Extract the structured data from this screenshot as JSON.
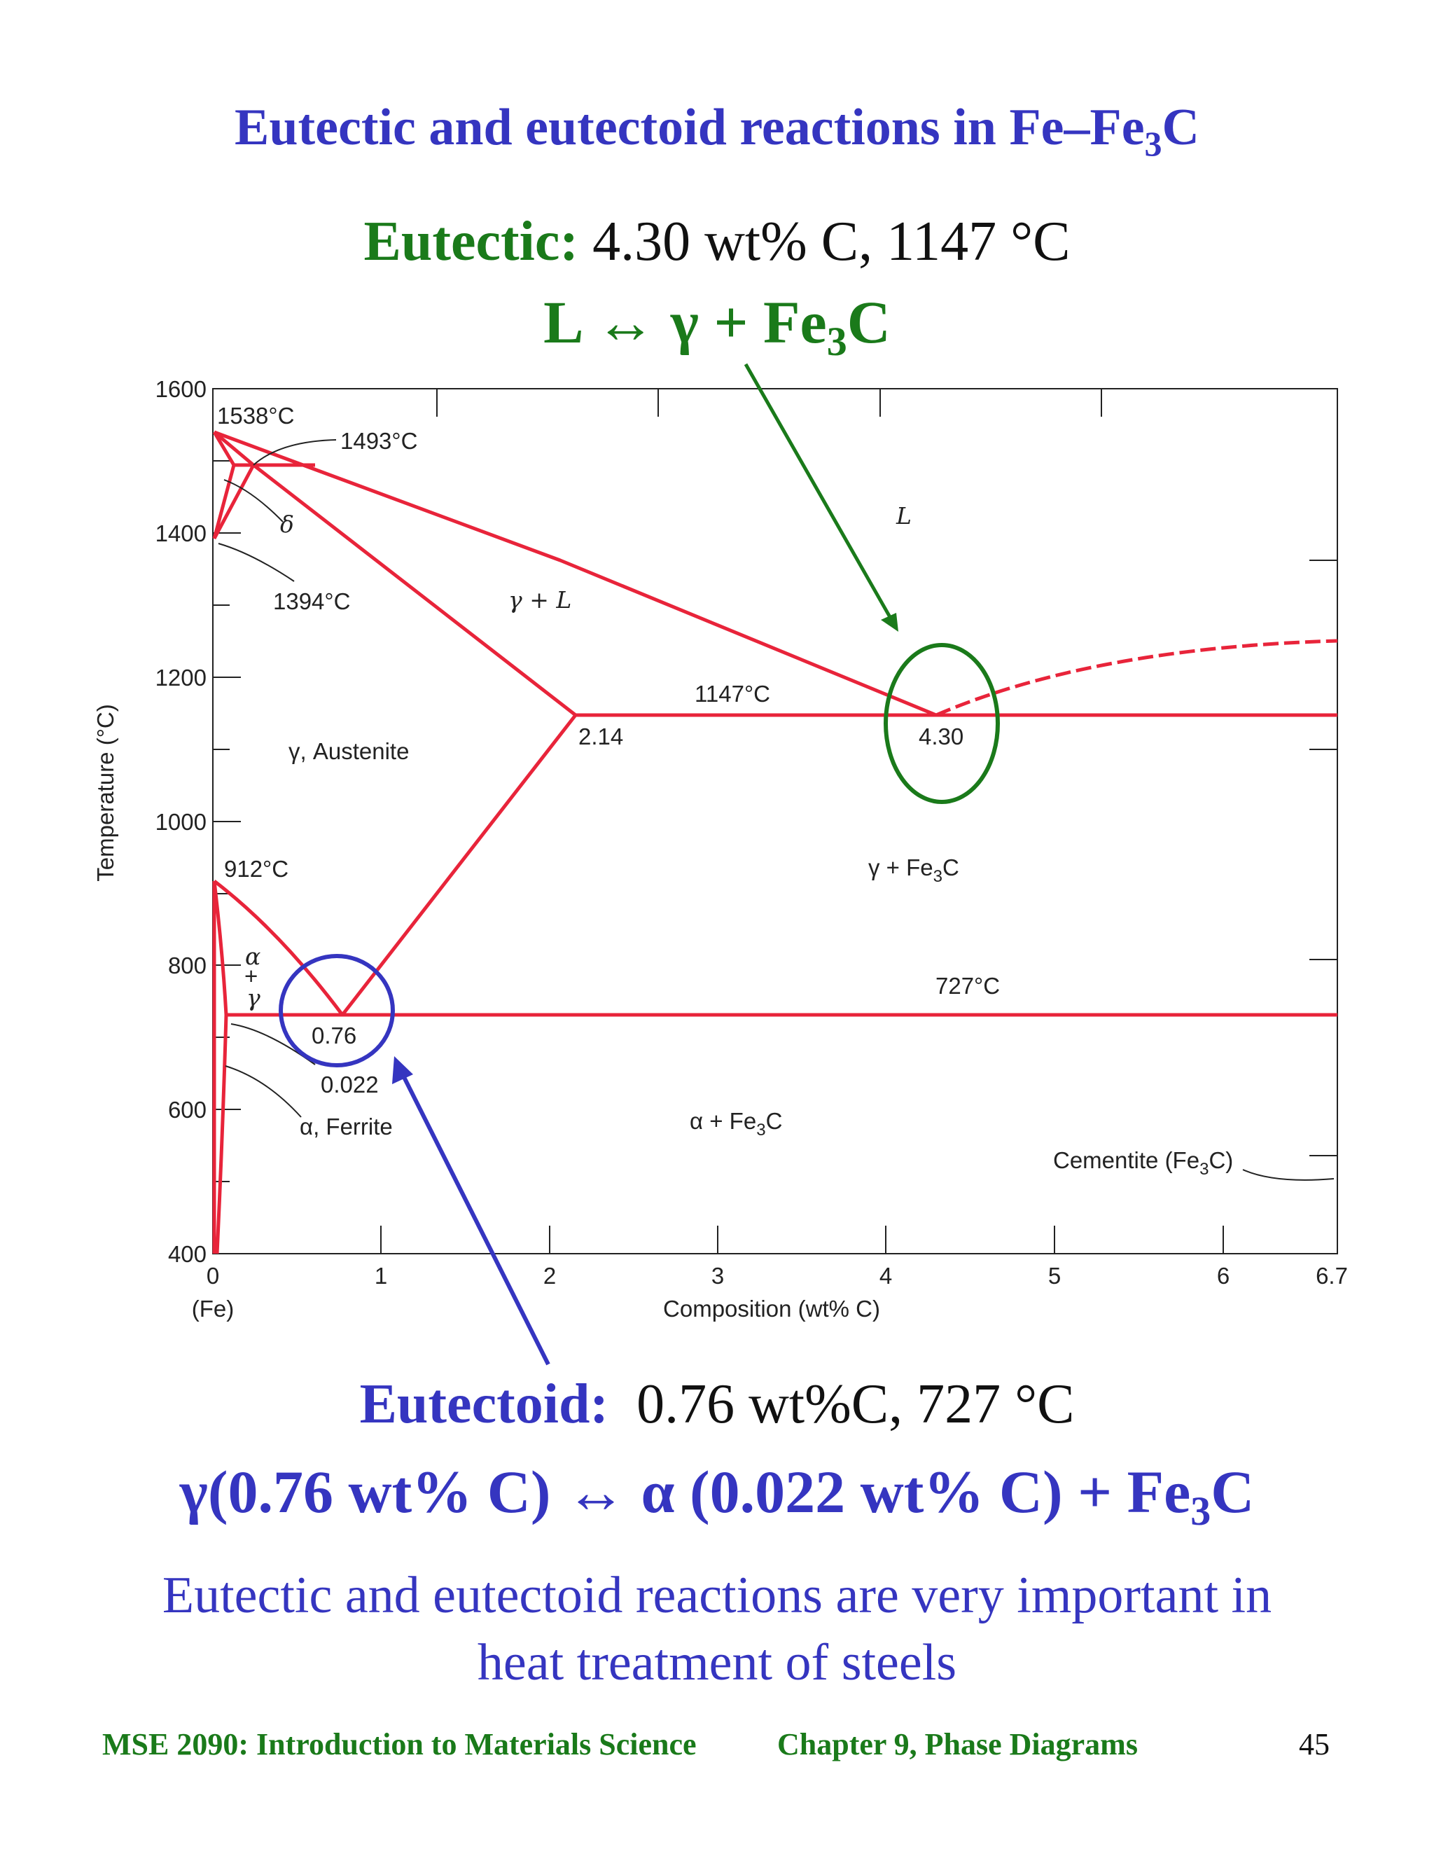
{
  "slide": {
    "title_prefix": "Eutectic and eutectoid reactions in Fe–Fe",
    "title_sub": "3",
    "title_suffix": "C"
  },
  "eutectic": {
    "label": "Eutectic:",
    "details": "4.30 wt% C, 1147 °C",
    "reaction_main": "L  ↔  γ  + Fe",
    "reaction_sub": "3",
    "reaction_tail": "C"
  },
  "eutectoid": {
    "label": "Eutectoid:",
    "details": "0.76 wt%C, 727 °C",
    "reaction_main": "γ(0.76 wt% C)  ↔ α (0.022 wt% C) + Fe",
    "reaction_sub": "3",
    "reaction_tail": "C"
  },
  "note": {
    "line1": "Eutectic and eutectoid reactions are very important in",
    "line2": "heat treatment of steels"
  },
  "footer": {
    "course": "MSE 2090: Introduction to Materials Science",
    "chapter": "Chapter 9, Phase Diagrams",
    "page": "45"
  },
  "diagram": {
    "y_axis_label": "Temperature (°C)",
    "x_axis_label": "Composition (wt% C)",
    "x_origin_label": "(Fe)",
    "x_ticks": [
      "0",
      "1",
      "2",
      "3",
      "4",
      "5",
      "6",
      "6.7"
    ],
    "y_ticks": [
      "400",
      "600",
      "800",
      "1000",
      "1200",
      "1400",
      "1600"
    ],
    "annotations": {
      "t1538": "1538°C",
      "t1493": "1493°C",
      "t1394": "1394°C",
      "t1147": "1147°C",
      "t912": "912°C",
      "t727": "727°C",
      "c214": "2.14",
      "c430": "4.30",
      "c076": "0.76",
      "c0022": "0.022"
    },
    "regions": {
      "liquid": "L",
      "gamma_liquid": "γ + L",
      "delta": "δ",
      "austenite": "γ, Austenite",
      "gamma_fe3c": "γ + Fe",
      "alpha_fe3c": "α + Fe",
      "ferrite": "α, Ferrite",
      "cementite": "Cementite (Fe",
      "alpha_gamma_a": "α",
      "alpha_gamma_plus": "+",
      "alpha_gamma_g": "γ",
      "sub3": "3",
      "close_c": "C",
      "close_c_paren": "C)"
    },
    "colors": {
      "phase_lines": "#e8243a",
      "eutectic_marker": "#1a7a1a",
      "eutectoid_marker": "#3535c0"
    }
  }
}
